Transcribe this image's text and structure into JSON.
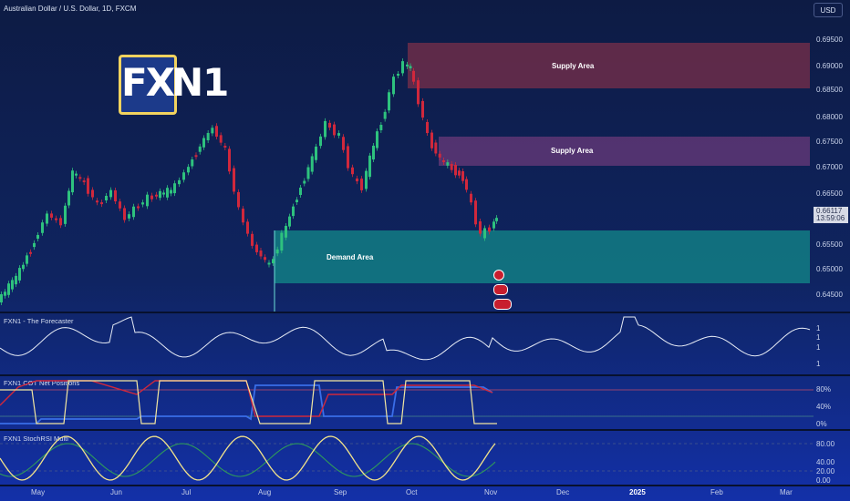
{
  "header": {
    "title": "Australian Dollar / U.S. Dollar, 1D, FXCM",
    "currency": "USD"
  },
  "logo": {
    "part1": "FX",
    "part2": "N1"
  },
  "zones": {
    "supply1": "Supply Area",
    "supply2": "Supply Area",
    "demand": "Demand Area"
  },
  "price_axis": [
    "0.69500",
    "0.69000",
    "0.68500",
    "0.68000",
    "0.67500",
    "0.67000",
    "0.66500",
    "0.66000",
    "0.65500",
    "0.65000",
    "0.64500"
  ],
  "current_price": {
    "value": "0.66117",
    "countdown": "13:59:06"
  },
  "panels": {
    "forecaster": {
      "title": "FXN1 - The Forecaster",
      "axis": [
        "1",
        "1",
        "1",
        "1"
      ]
    },
    "cot": {
      "title": "FXN1 COT Net Positions",
      "axis": [
        "80%",
        "40%",
        "0%"
      ]
    },
    "stoch": {
      "title": "FXN1 StochRSI Multi",
      "axis": [
        "80.00",
        "40.00",
        "20.00",
        "0.00"
      ]
    }
  },
  "time_axis": [
    "May",
    "Jun",
    "Jul",
    "Aug",
    "Sep",
    "Oct",
    "Nov",
    "Dec",
    "2025",
    "Feb",
    "Mar"
  ],
  "colors": {
    "up": "#2ec27e",
    "down": "#d0283c",
    "demand": "#17818a",
    "supply": "#8a3350"
  }
}
